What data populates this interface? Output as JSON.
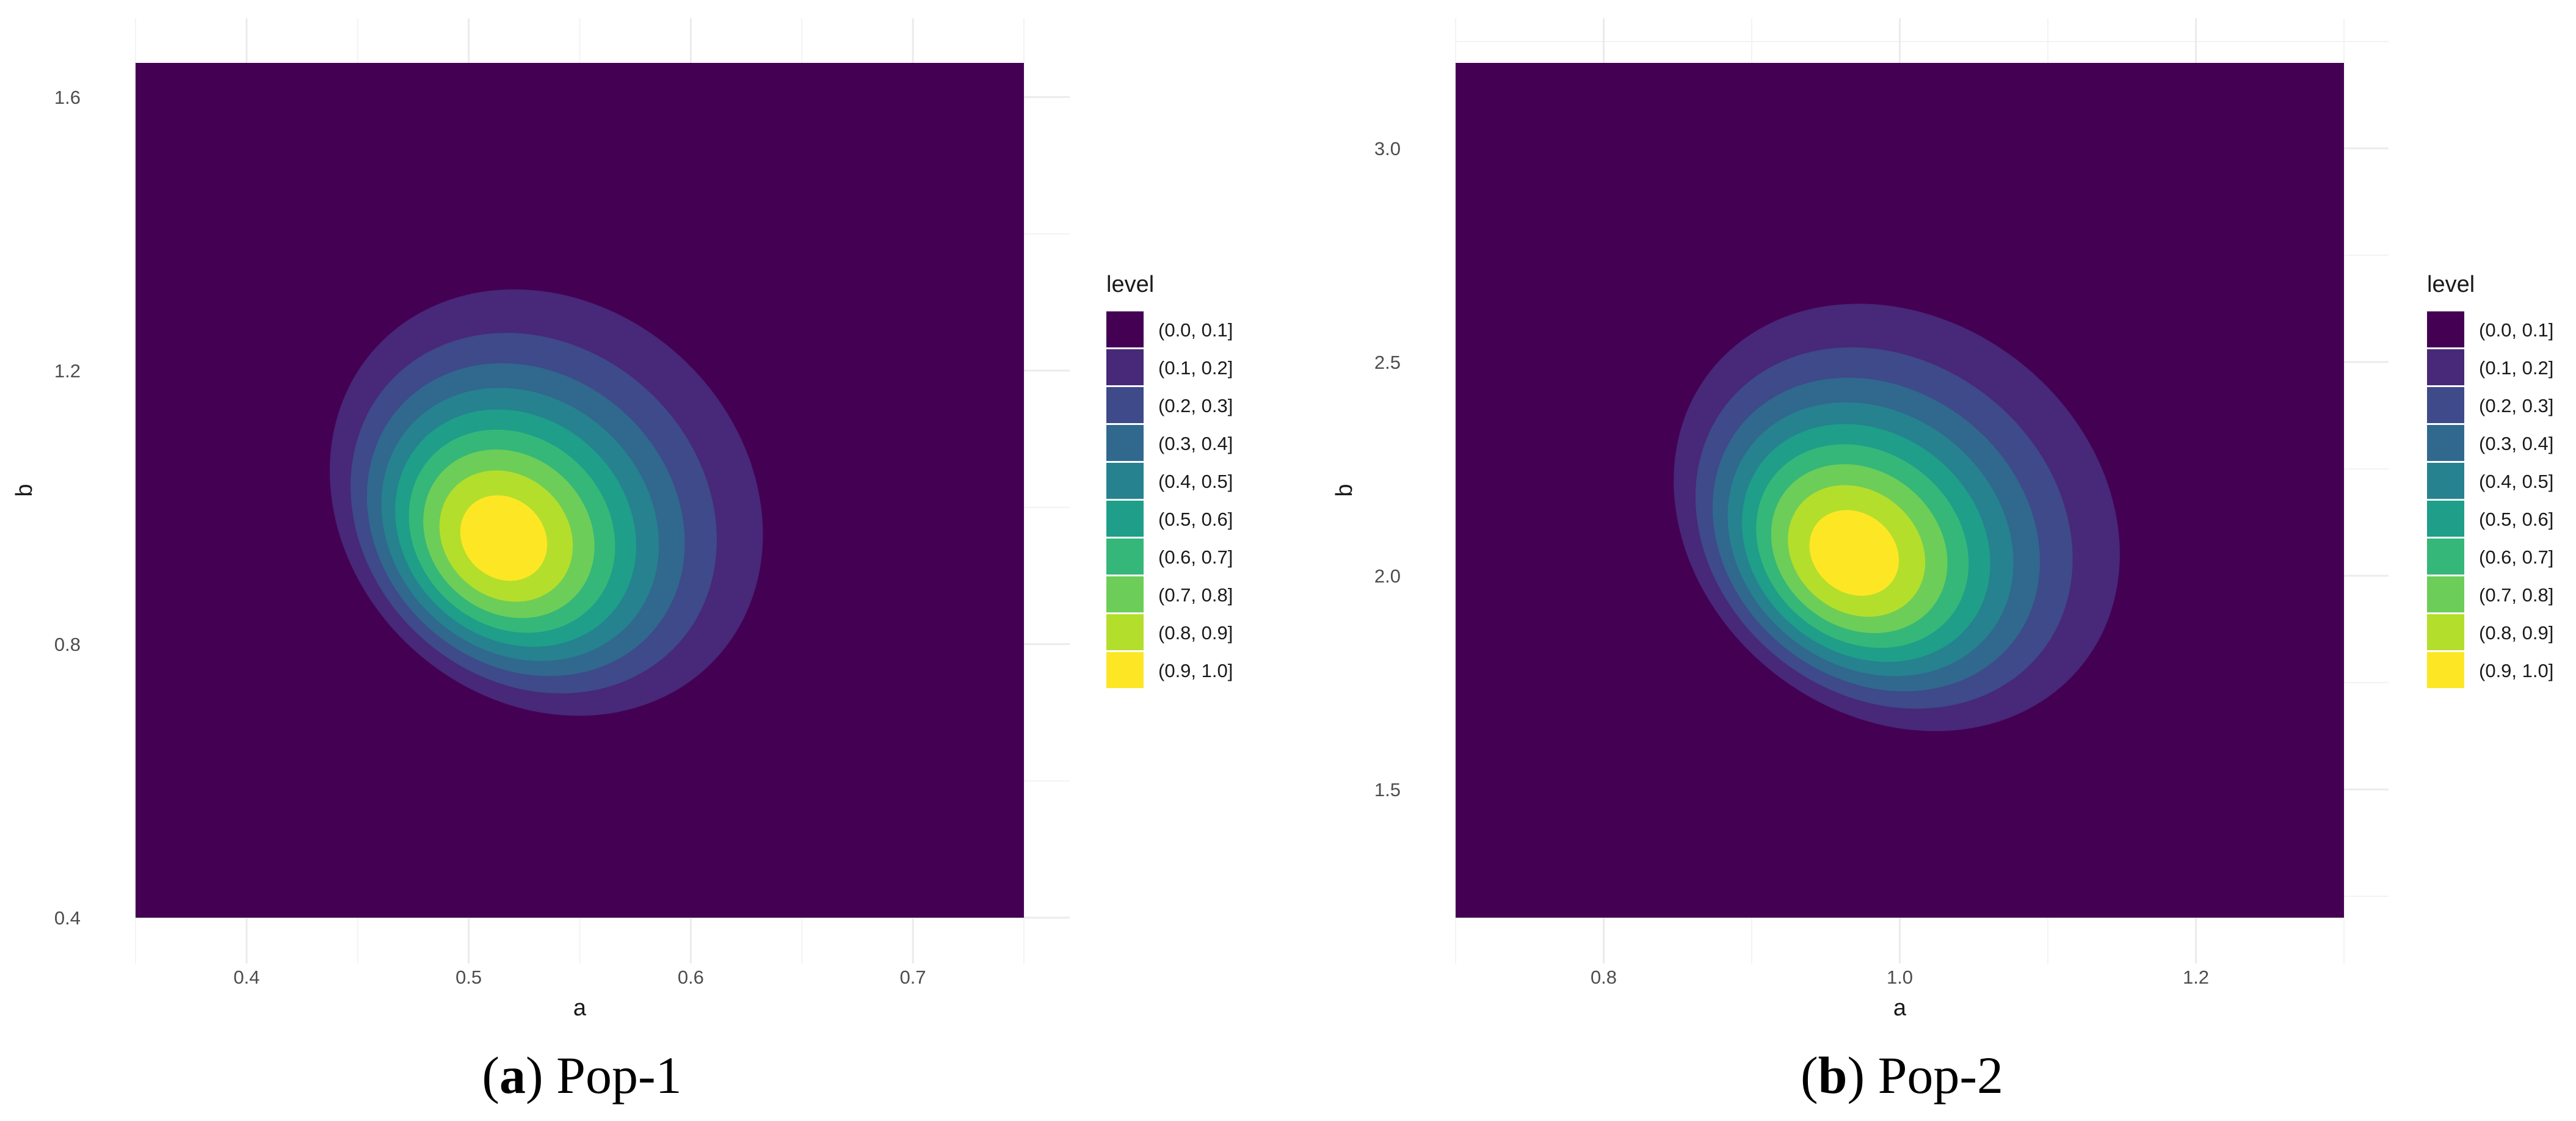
{
  "chart_data": [
    {
      "type": "contour",
      "caption": {
        "label": "a",
        "title": "Pop-1"
      },
      "xlabel": "a",
      "ylabel": "b",
      "xlim": [
        0.35,
        0.75
      ],
      "ylim": [
        0.4,
        1.65
      ],
      "x_ticks": [
        0.4,
        0.5,
        0.6,
        0.7
      ],
      "x_tick_labels": [
        "0.4",
        "0.5",
        "0.6",
        "0.7"
      ],
      "y_ticks": [
        0.4,
        0.8,
        1.2,
        1.6
      ],
      "y_tick_labels": [
        "0.4",
        "0.8",
        "1.2",
        "1.6"
      ],
      "grid": true,
      "mode": {
        "a": 0.515,
        "b": 0.953
      },
      "legend": {
        "title": "level",
        "position": "right",
        "entries": [
          "(0.0, 0.1]",
          "(0.1, 0.2]",
          "(0.2, 0.3]",
          "(0.3, 0.4]",
          "(0.4, 0.5]",
          "(0.5, 0.6]",
          "(0.6, 0.7]",
          "(0.7, 0.8]",
          "(0.8, 0.9]",
          "(0.9, 1.0]"
        ]
      }
    },
    {
      "type": "contour",
      "caption": {
        "label": "b",
        "title": "Pop-2"
      },
      "xlabel": "a",
      "ylabel": "b",
      "xlim": [
        0.7,
        1.3
      ],
      "ylim": [
        1.2,
        3.2
      ],
      "x_ticks": [
        0.8,
        1.0,
        1.2
      ],
      "x_tick_labels": [
        "0.8",
        "1.0",
        "1.2"
      ],
      "y_ticks": [
        1.5,
        2.0,
        2.5,
        3.0
      ],
      "y_tick_labels": [
        "1.5",
        "2.0",
        "2.5",
        "3.0"
      ],
      "grid": true,
      "mode": {
        "a": 0.968,
        "b": 2.05
      },
      "legend": {
        "title": "level",
        "position": "right",
        "entries": [
          "(0.0, 0.1]",
          "(0.1, 0.2]",
          "(0.2, 0.3]",
          "(0.3, 0.4]",
          "(0.4, 0.5]",
          "(0.5, 0.6]",
          "(0.6, 0.7]",
          "(0.7, 0.8]",
          "(0.8, 0.9]",
          "(0.9, 1.0]"
        ]
      }
    }
  ],
  "colors": {
    "levels": [
      "#440154",
      "#482878",
      "#3E4A89",
      "#31688E",
      "#26828E",
      "#1F9E89",
      "#35B779",
      "#6DCD59",
      "#B4DE2C",
      "#FDE725"
    ]
  }
}
